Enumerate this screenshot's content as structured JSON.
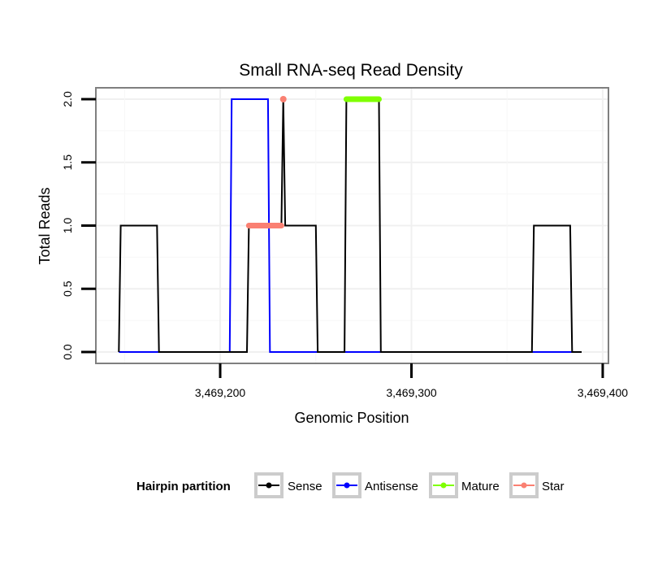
{
  "chart_data": {
    "type": "line",
    "title": "Small RNA-seq Read Density",
    "xlabel": "Genomic Position",
    "ylabel": "Total Reads",
    "xlim": [
      3469135,
      3469403
    ],
    "ylim": [
      -0.09,
      2.09
    ],
    "x_ticks": [
      3469200,
      3469300,
      3469400
    ],
    "x_tick_labels": [
      "3,469,200",
      "3,469,300",
      "3,469,400"
    ],
    "y_ticks": [
      0.0,
      0.5,
      1.0,
      1.5,
      2.0
    ],
    "y_tick_labels": [
      "0.0",
      "0.5",
      "1.0",
      "1.5",
      "2.0"
    ],
    "grid": true,
    "legend": {
      "title": "Hairpin partition",
      "position": "bottom",
      "entries": [
        {
          "name": "Sense",
          "color": "#000000"
        },
        {
          "name": "Antisense",
          "color": "#0000ff"
        },
        {
          "name": "Mature",
          "color": "#7fff00"
        },
        {
          "name": "Star",
          "color": "#fa8072"
        }
      ]
    },
    "series": [
      {
        "name": "Sense",
        "color": "#000000",
        "points": [
          [
            3469147,
            0
          ],
          [
            3469148,
            1
          ],
          [
            3469167,
            1
          ],
          [
            3469168,
            0
          ],
          [
            3469214,
            0
          ],
          [
            3469215,
            1
          ],
          [
            3469232,
            1
          ],
          [
            3469233,
            2
          ],
          [
            3469234,
            1
          ],
          [
            3469250,
            1
          ],
          [
            3469251,
            0
          ],
          [
            3469265,
            0
          ],
          [
            3469266,
            2
          ],
          [
            3469283,
            2
          ],
          [
            3469284,
            0
          ],
          [
            3469363,
            0
          ],
          [
            3469364,
            1
          ],
          [
            3469383,
            1
          ],
          [
            3469384,
            0
          ],
          [
            3469389,
            0
          ]
        ]
      },
      {
        "name": "Antisense",
        "color": "#0000ff",
        "points": [
          [
            3469147,
            0
          ],
          [
            3469205,
            0
          ],
          [
            3469206,
            2
          ],
          [
            3469225,
            2
          ],
          [
            3469226,
            0
          ],
          [
            3469385,
            0
          ]
        ]
      },
      {
        "name": "Mature",
        "color": "#7fff00",
        "segment": {
          "x_start": 3469266,
          "x_end": 3469283,
          "y": 2
        }
      },
      {
        "name": "Star",
        "color": "#fa8072",
        "segment": {
          "x_start": 3469215,
          "x_end": 3469232,
          "y": 1
        },
        "marker": {
          "x": 3469233,
          "y": 2
        }
      }
    ]
  }
}
